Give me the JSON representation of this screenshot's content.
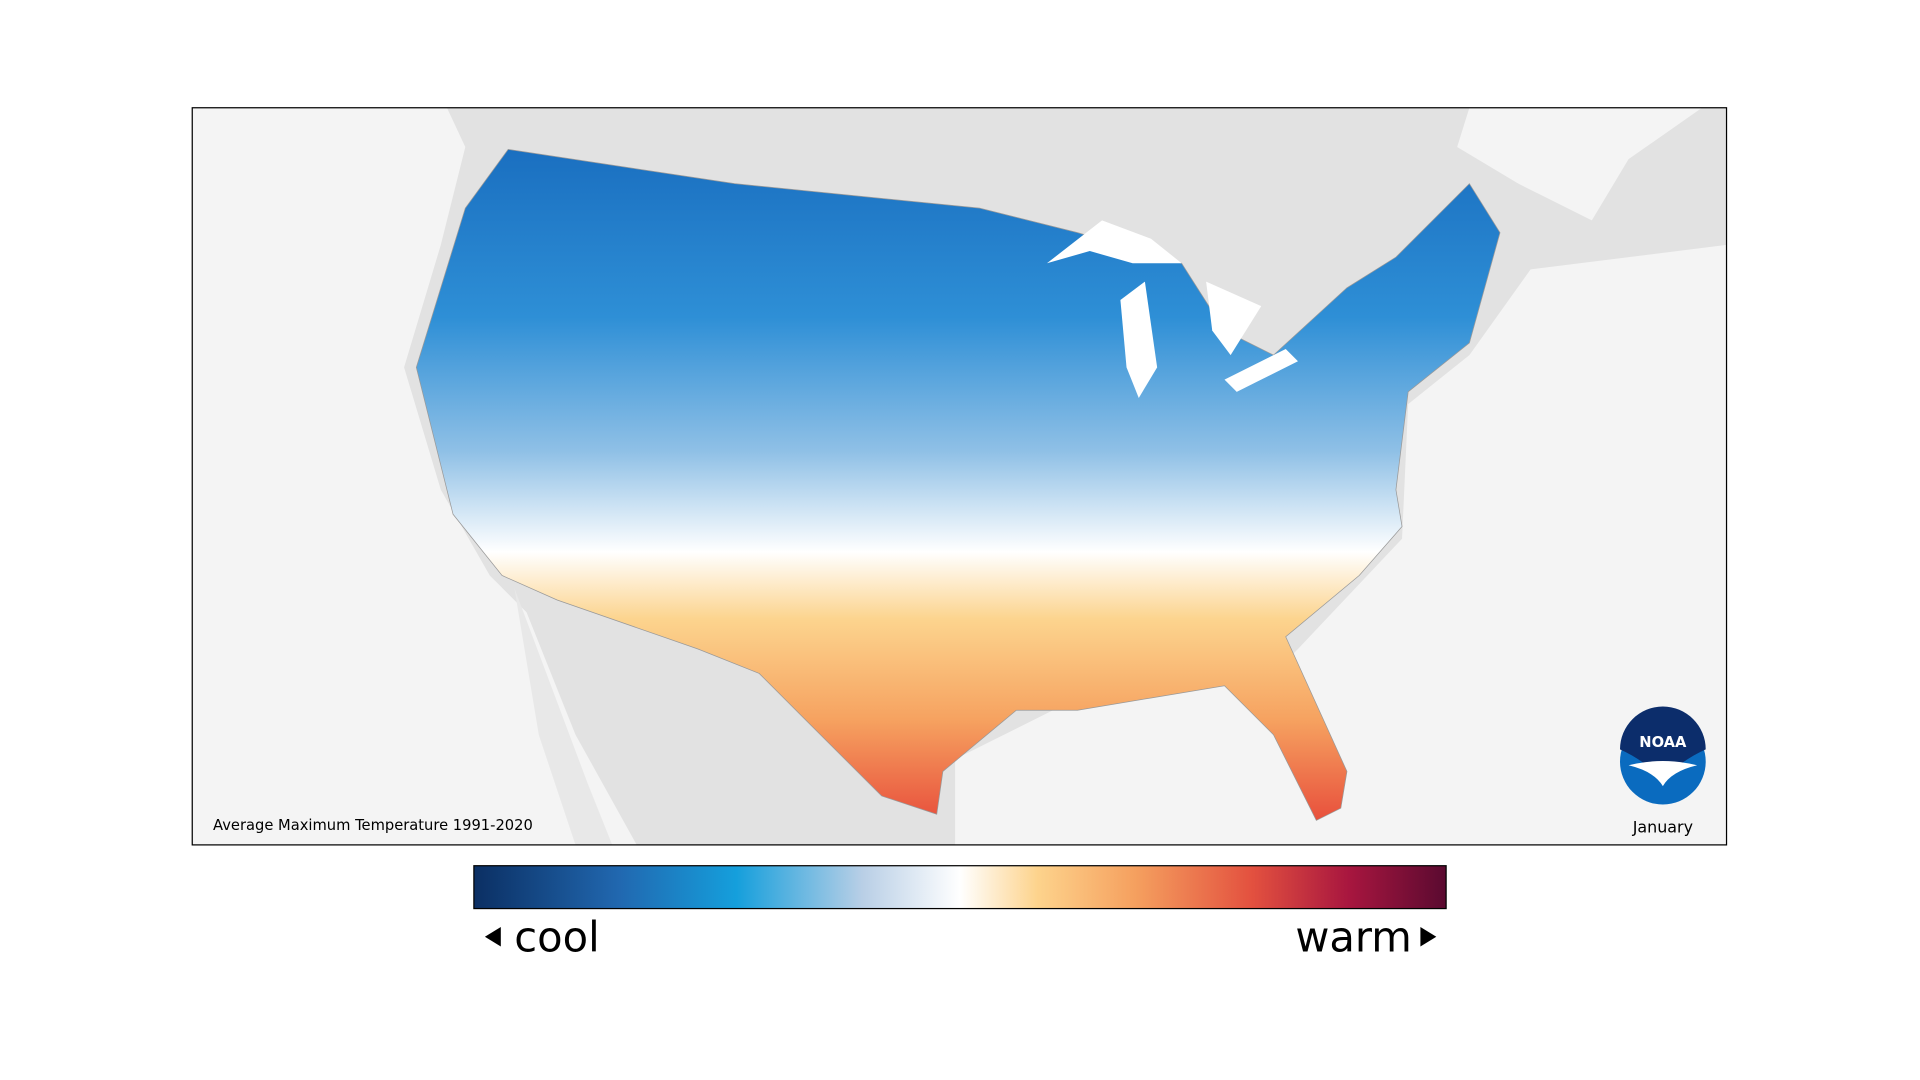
{
  "map": {
    "caption": "Average Maximum Temperature 1991-2020",
    "month": "January",
    "logo": "NOAA"
  },
  "legend": {
    "low_label": "cool",
    "high_label": "warm"
  }
}
